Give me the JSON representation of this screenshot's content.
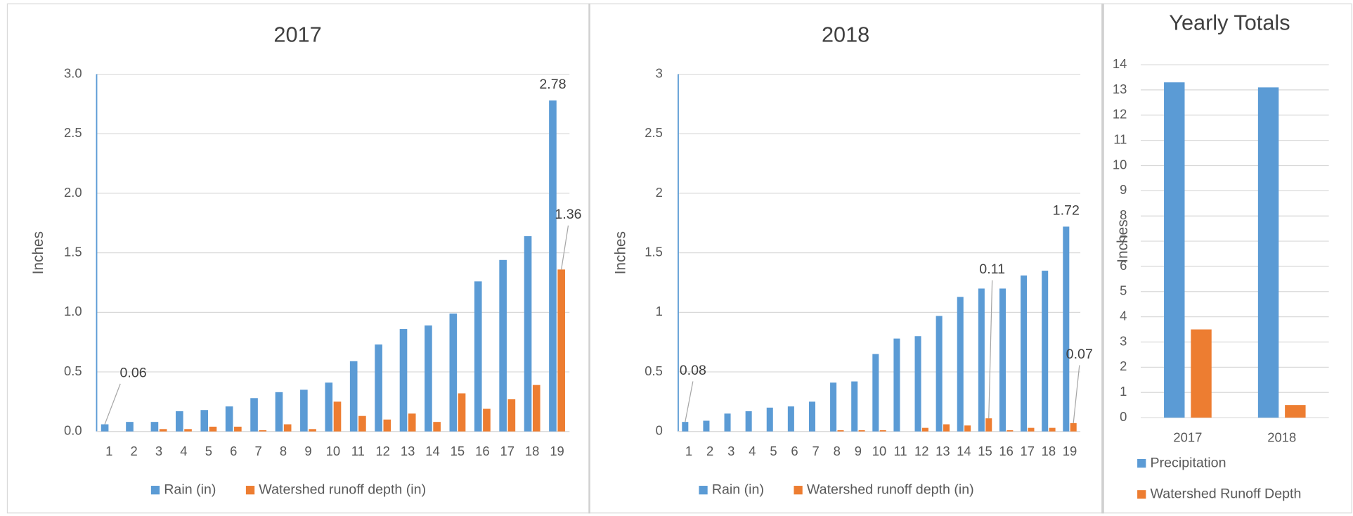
{
  "chart_data": [
    {
      "type": "bar",
      "title": "2017",
      "y_label": "Inches",
      "categories": [
        1,
        2,
        3,
        4,
        5,
        6,
        7,
        8,
        9,
        10,
        11,
        12,
        13,
        14,
        15,
        16,
        17,
        18,
        19
      ],
      "series": [
        {
          "name": "Rain (in)",
          "color": "#5b9bd5",
          "values": [
            0.06,
            0.08,
            0.08,
            0.17,
            0.18,
            0.21,
            0.28,
            0.33,
            0.35,
            0.41,
            0.59,
            0.73,
            0.86,
            0.89,
            0.99,
            1.26,
            1.44,
            1.64,
            2.78
          ],
          "value_labels": [
            "0.06",
            null,
            null,
            null,
            null,
            null,
            null,
            null,
            null,
            null,
            null,
            null,
            null,
            null,
            null,
            null,
            null,
            null,
            "2.78"
          ]
        },
        {
          "name": "Watershed runoff depth (in)",
          "color": "#ed7d31",
          "values": [
            0,
            0,
            0.02,
            0.02,
            0.04,
            0.04,
            0.01,
            0.06,
            0.02,
            0.25,
            0.13,
            0.1,
            0.15,
            0.08,
            0.32,
            0.19,
            0.27,
            0.39,
            1.36
          ],
          "value_labels": [
            null,
            null,
            null,
            null,
            null,
            null,
            null,
            null,
            null,
            null,
            null,
            null,
            null,
            null,
            null,
            null,
            null,
            null,
            "1.36"
          ]
        }
      ],
      "ylim": [
        0,
        3
      ],
      "yticks": [
        {
          "value": 0,
          "label": "0.0"
        },
        0.5,
        {
          "value": 1,
          "label": "1.0"
        },
        1.5,
        {
          "value": 2,
          "label": "2.0"
        },
        2.5,
        {
          "value": 3,
          "label": "3.0"
        }
      ],
      "grid": true,
      "legend": "bottom"
    },
    {
      "type": "bar",
      "title": "2018",
      "y_label": "Inches",
      "categories": [
        1,
        2,
        3,
        4,
        5,
        6,
        7,
        8,
        9,
        10,
        11,
        12,
        13,
        14,
        15,
        16,
        17,
        18,
        19
      ],
      "series": [
        {
          "name": "Rain (in)",
          "color": "#5b9bd5",
          "values": [
            0.08,
            0.09,
            0.15,
            0.17,
            0.2,
            0.21,
            0.25,
            0.41,
            0.42,
            0.65,
            0.78,
            0.8,
            0.97,
            1.13,
            1.2,
            1.2,
            1.31,
            1.35,
            1.72
          ],
          "value_labels": [
            "0.08",
            null,
            null,
            null,
            null,
            null,
            null,
            null,
            null,
            null,
            null,
            null,
            null,
            null,
            null,
            null,
            null,
            null,
            "1.72"
          ]
        },
        {
          "name": "Watershed runoff depth (in)",
          "color": "#ed7d31",
          "values": [
            0,
            0,
            0,
            0,
            0,
            0,
            0,
            0.01,
            0.01,
            0.01,
            0,
            0.03,
            0.06,
            0.05,
            0.11,
            0.01,
            0.03,
            0.03,
            0.07
          ],
          "value_labels": [
            null,
            null,
            null,
            null,
            null,
            null,
            null,
            null,
            null,
            null,
            null,
            null,
            null,
            null,
            "0.11",
            null,
            null,
            null,
            "0.07"
          ]
        }
      ],
      "ylim": [
        0,
        3
      ],
      "yticks": [
        0,
        0.5,
        1,
        1.5,
        2,
        2.5,
        3
      ],
      "grid": true,
      "legend": "bottom"
    },
    {
      "type": "bar",
      "title": "Yearly Totals",
      "y_label": "Inches",
      "categories": [
        "2017",
        "2018"
      ],
      "series": [
        {
          "name": "Precipitation",
          "color": "#5b9bd5",
          "values": [
            13.3,
            13.1
          ]
        },
        {
          "name": "Watershed Runoff Depth",
          "color": "#ed7d31",
          "values": [
            3.5,
            0.5
          ]
        }
      ],
      "ylim": [
        0,
        14
      ],
      "yticks": [
        0,
        1,
        2,
        3,
        4,
        5,
        6,
        7,
        8,
        9,
        10,
        11,
        12,
        13,
        14
      ],
      "grid": true,
      "legend": "bottom-stacked"
    }
  ]
}
